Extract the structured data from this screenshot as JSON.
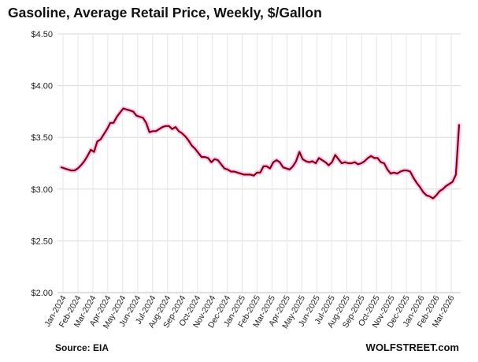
{
  "chart_data": {
    "type": "line",
    "title": "Gasoline, Average Retail Price, Weekly, $/Gallon",
    "xlabel": "",
    "ylabel": "",
    "ylim": [
      2.0,
      4.5
    ],
    "y_ticks": [
      2.0,
      2.5,
      3.0,
      3.5,
      4.0,
      4.5
    ],
    "y_tick_labels": [
      "$2.00",
      "$2.50",
      "$3.00",
      "$3.50",
      "$4.00",
      "$4.50"
    ],
    "x_tick_labels": [
      "Jan-2024",
      "Feb-2024",
      "Mar-2024",
      "Apr-2024",
      "May-2024",
      "Jun-2024",
      "Jul-2024",
      "Aug-2024",
      "Sep-2024",
      "Oct-2024",
      "Nov-2024",
      "Dec-2024",
      "Jan-2025",
      "Feb-2025",
      "Mar-2025",
      "Apr-2025",
      "May-2025",
      "Jun-2025",
      "Jul-2025",
      "Aug-2025",
      "Sep-2025",
      "Oct-2025",
      "Nov-2025",
      "Dec-2025",
      "Jan-2026",
      "Feb-2026",
      "Mar-2026"
    ],
    "grid": true,
    "line_color": "#8b0000",
    "glow_color": "#ff99ee",
    "series": [
      {
        "values": [
          3.21,
          3.2,
          3.19,
          3.18,
          3.18,
          3.2,
          3.23,
          3.27,
          3.32,
          3.38,
          3.36,
          3.46,
          3.48,
          3.53,
          3.58,
          3.64,
          3.64,
          3.7,
          3.74,
          3.78,
          3.77,
          3.76,
          3.75,
          3.71,
          3.7,
          3.69,
          3.64,
          3.55,
          3.56,
          3.56,
          3.58,
          3.6,
          3.61,
          3.61,
          3.58,
          3.6,
          3.56,
          3.54,
          3.51,
          3.47,
          3.42,
          3.39,
          3.35,
          3.31,
          3.31,
          3.3,
          3.26,
          3.29,
          3.28,
          3.24,
          3.2,
          3.19,
          3.17,
          3.17,
          3.16,
          3.15,
          3.14,
          3.14,
          3.14,
          3.13,
          3.16,
          3.16,
          3.22,
          3.22,
          3.2,
          3.26,
          3.28,
          3.26,
          3.21,
          3.2,
          3.19,
          3.22,
          3.27,
          3.36,
          3.29,
          3.27,
          3.26,
          3.27,
          3.25,
          3.3,
          3.28,
          3.26,
          3.23,
          3.26,
          3.33,
          3.29,
          3.25,
          3.26,
          3.25,
          3.25,
          3.26,
          3.24,
          3.25,
          3.27,
          3.3,
          3.32,
          3.3,
          3.3,
          3.26,
          3.25,
          3.19,
          3.15,
          3.16,
          3.15,
          3.17,
          3.18,
          3.18,
          3.17,
          3.11,
          3.06,
          3.02,
          2.97,
          2.94,
          2.93,
          2.91,
          2.94,
          2.98,
          3.0,
          3.03,
          3.05,
          3.07,
          3.14,
          3.62
        ]
      }
    ]
  },
  "footer": {
    "source": "Source: EIA",
    "brand": "WOLFSTREET.com"
  }
}
